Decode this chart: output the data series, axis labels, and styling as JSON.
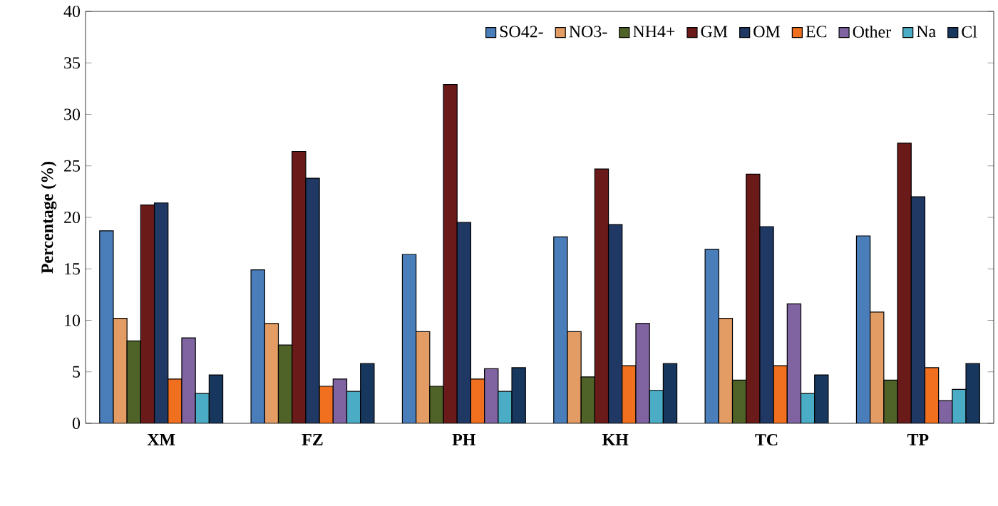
{
  "chart_data": {
    "type": "bar",
    "ylabel": "Percentage (%)",
    "categories": [
      "XM",
      "FZ",
      "PH",
      "KH",
      "TC",
      "TP"
    ],
    "series": [
      {
        "name": "SO42-",
        "color": "#4a7ebb",
        "values": [
          18.7,
          14.9,
          16.4,
          18.1,
          16.9,
          18.2
        ]
      },
      {
        "name": "NO3-",
        "color": "#e39d64",
        "values": [
          10.2,
          9.7,
          8.9,
          8.9,
          10.2,
          10.8
        ]
      },
      {
        "name": "NH4+",
        "color": "#4f6228",
        "values": [
          8.0,
          7.6,
          3.6,
          4.5,
          4.2,
          4.2
        ]
      },
      {
        "name": "GM",
        "color": "#6b1a1a",
        "values": [
          21.2,
          26.4,
          32.9,
          24.7,
          24.2,
          27.2
        ]
      },
      {
        "name": "OM",
        "color": "#1f3864",
        "values": [
          21.4,
          23.8,
          19.5,
          19.3,
          19.1,
          22.0
        ]
      },
      {
        "name": "EC",
        "color": "#f07020",
        "values": [
          4.3,
          3.6,
          4.3,
          5.6,
          5.6,
          5.4
        ]
      },
      {
        "name": "Other",
        "color": "#8064a2",
        "values": [
          8.3,
          4.3,
          5.3,
          9.7,
          11.6,
          2.2
        ]
      },
      {
        "name": "Na",
        "color": "#4bacc6",
        "values": [
          2.9,
          3.1,
          3.1,
          3.2,
          2.9,
          3.3
        ]
      },
      {
        "name": "Cl",
        "color": "#17375e",
        "values": [
          4.7,
          5.8,
          5.4,
          5.8,
          4.7,
          5.8
        ]
      }
    ],
    "ylim": [
      0,
      40
    ],
    "yticks": [
      0,
      5,
      10,
      15,
      20,
      25,
      30,
      35,
      40
    ],
    "legend": "top right"
  }
}
